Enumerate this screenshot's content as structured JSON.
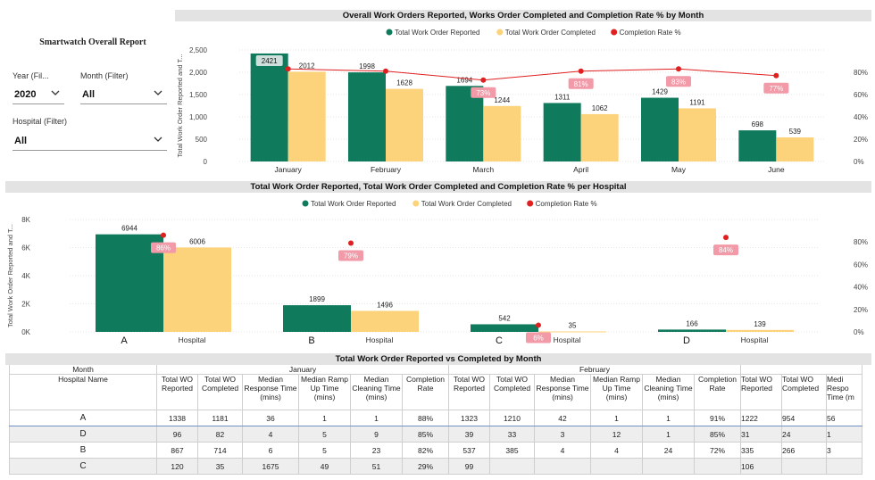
{
  "filters": {
    "report_title": "Smartwatch Overall Report",
    "year_label": "Year (Fil...",
    "year_value": "2020",
    "month_label": "Month (Filter)",
    "month_value": "All",
    "hospital_label": "Hospital (Filter)",
    "hospital_value": "All"
  },
  "chart_data": [
    {
      "type": "bar",
      "title": "Overall Work Orders Reported, Works Order Completed and Completion Rate % by Month",
      "ylabel": "Total Work Order Reported and T...",
      "categories": [
        "January",
        "February",
        "March",
        "April",
        "May",
        "June"
      ],
      "series": [
        {
          "name": "Total Work Order Reported",
          "values": [
            2421,
            1998,
            1694,
            1311,
            1429,
            698
          ],
          "color": "#0f7a5c"
        },
        {
          "name": "Total Work Order Completed",
          "values": [
            2012,
            1628,
            1244,
            1062,
            1191,
            539
          ],
          "color": "#fcd27a"
        }
      ],
      "line": {
        "name": "Completion Rate %",
        "values": [
          83,
          81,
          73,
          81,
          83,
          77
        ],
        "labels": [
          "",
          "",
          "73%",
          "81%",
          "83%",
          "77%"
        ],
        "color": "#e02020"
      },
      "ylim": [
        0,
        2500
      ],
      "yticks": [
        "0",
        "500",
        "1,000",
        "1,500",
        "2,000",
        "2,500"
      ],
      "y2lim": [
        0,
        100
      ],
      "y2ticks": [
        "0%",
        "20%",
        "40%",
        "60%",
        "80%"
      ],
      "highlight_label": "2421",
      "legend": "top-center",
      "grid": true
    },
    {
      "type": "bar",
      "title": "Total Work Order Reported, Total Work Order Completed and Completion Rate % per Hospital",
      "ylabel": "Total Work Order Reported and T...",
      "categories": [
        "A",
        "B",
        "C",
        "D"
      ],
      "category_suffix": "Hospital",
      "series": [
        {
          "name": "Total Work Order Reported",
          "values": [
            6944,
            1899,
            542,
            166
          ],
          "color": "#0f7a5c"
        },
        {
          "name": "Total Work Order Completed",
          "values": [
            6006,
            1496,
            35,
            139
          ],
          "color": "#fcd27a"
        }
      ],
      "line": {
        "name": "Completion Rate %",
        "values": [
          86,
          79,
          6,
          84
        ],
        "labels": [
          "86%",
          "79%",
          "6%",
          "84%"
        ],
        "color": "#e02020"
      },
      "ylim": [
        0,
        8000
      ],
      "yticks": [
        "0K",
        "2K",
        "4K",
        "6K",
        "8K"
      ],
      "y2lim": [
        0,
        100
      ],
      "y2ticks": [
        "0%",
        "20%",
        "40%",
        "60%",
        "80%"
      ],
      "legend": "top-center",
      "grid": true
    }
  ],
  "table": {
    "title": "Total Work Order Reported vs Completed by Month",
    "month_header": "Month",
    "name_header": "Hospital Name",
    "months": [
      "January",
      "February"
    ],
    "columns": [
      "Total WO Reported",
      "Total WO Completed",
      "Median Response Time (mins)",
      "Median Ramp Up Time (mins)",
      "Median Cleaning Time (mins)",
      "Completion Rate"
    ],
    "partial_columns": [
      "Total WO Reported",
      "Total WO Completed",
      "Medi Respo Time (m"
    ],
    "rows": [
      {
        "name": "A",
        "jan": [
          "1338",
          "1181",
          "36",
          "1",
          "1",
          "88%"
        ],
        "feb": [
          "1323",
          "1210",
          "42",
          "1",
          "1",
          "91%"
        ],
        "mar": [
          "1222",
          "954",
          "56"
        ]
      },
      {
        "name": "D",
        "jan": [
          "96",
          "82",
          "4",
          "5",
          "9",
          "85%"
        ],
        "feb": [
          "39",
          "33",
          "3",
          "12",
          "1",
          "85%"
        ],
        "mar": [
          "31",
          "24",
          "1"
        ]
      },
      {
        "name": "B",
        "jan": [
          "867",
          "714",
          "6",
          "5",
          "23",
          "82%"
        ],
        "feb": [
          "537",
          "385",
          "4",
          "4",
          "24",
          "72%"
        ],
        "mar": [
          "335",
          "266",
          "3"
        ]
      },
      {
        "name": "C",
        "jan": [
          "120",
          "35",
          "1675",
          "49",
          "51",
          "29%"
        ],
        "feb": [
          "99",
          "",
          "",
          "",
          "",
          ""
        ],
        "mar": [
          "106",
          "",
          ""
        ]
      }
    ]
  }
}
